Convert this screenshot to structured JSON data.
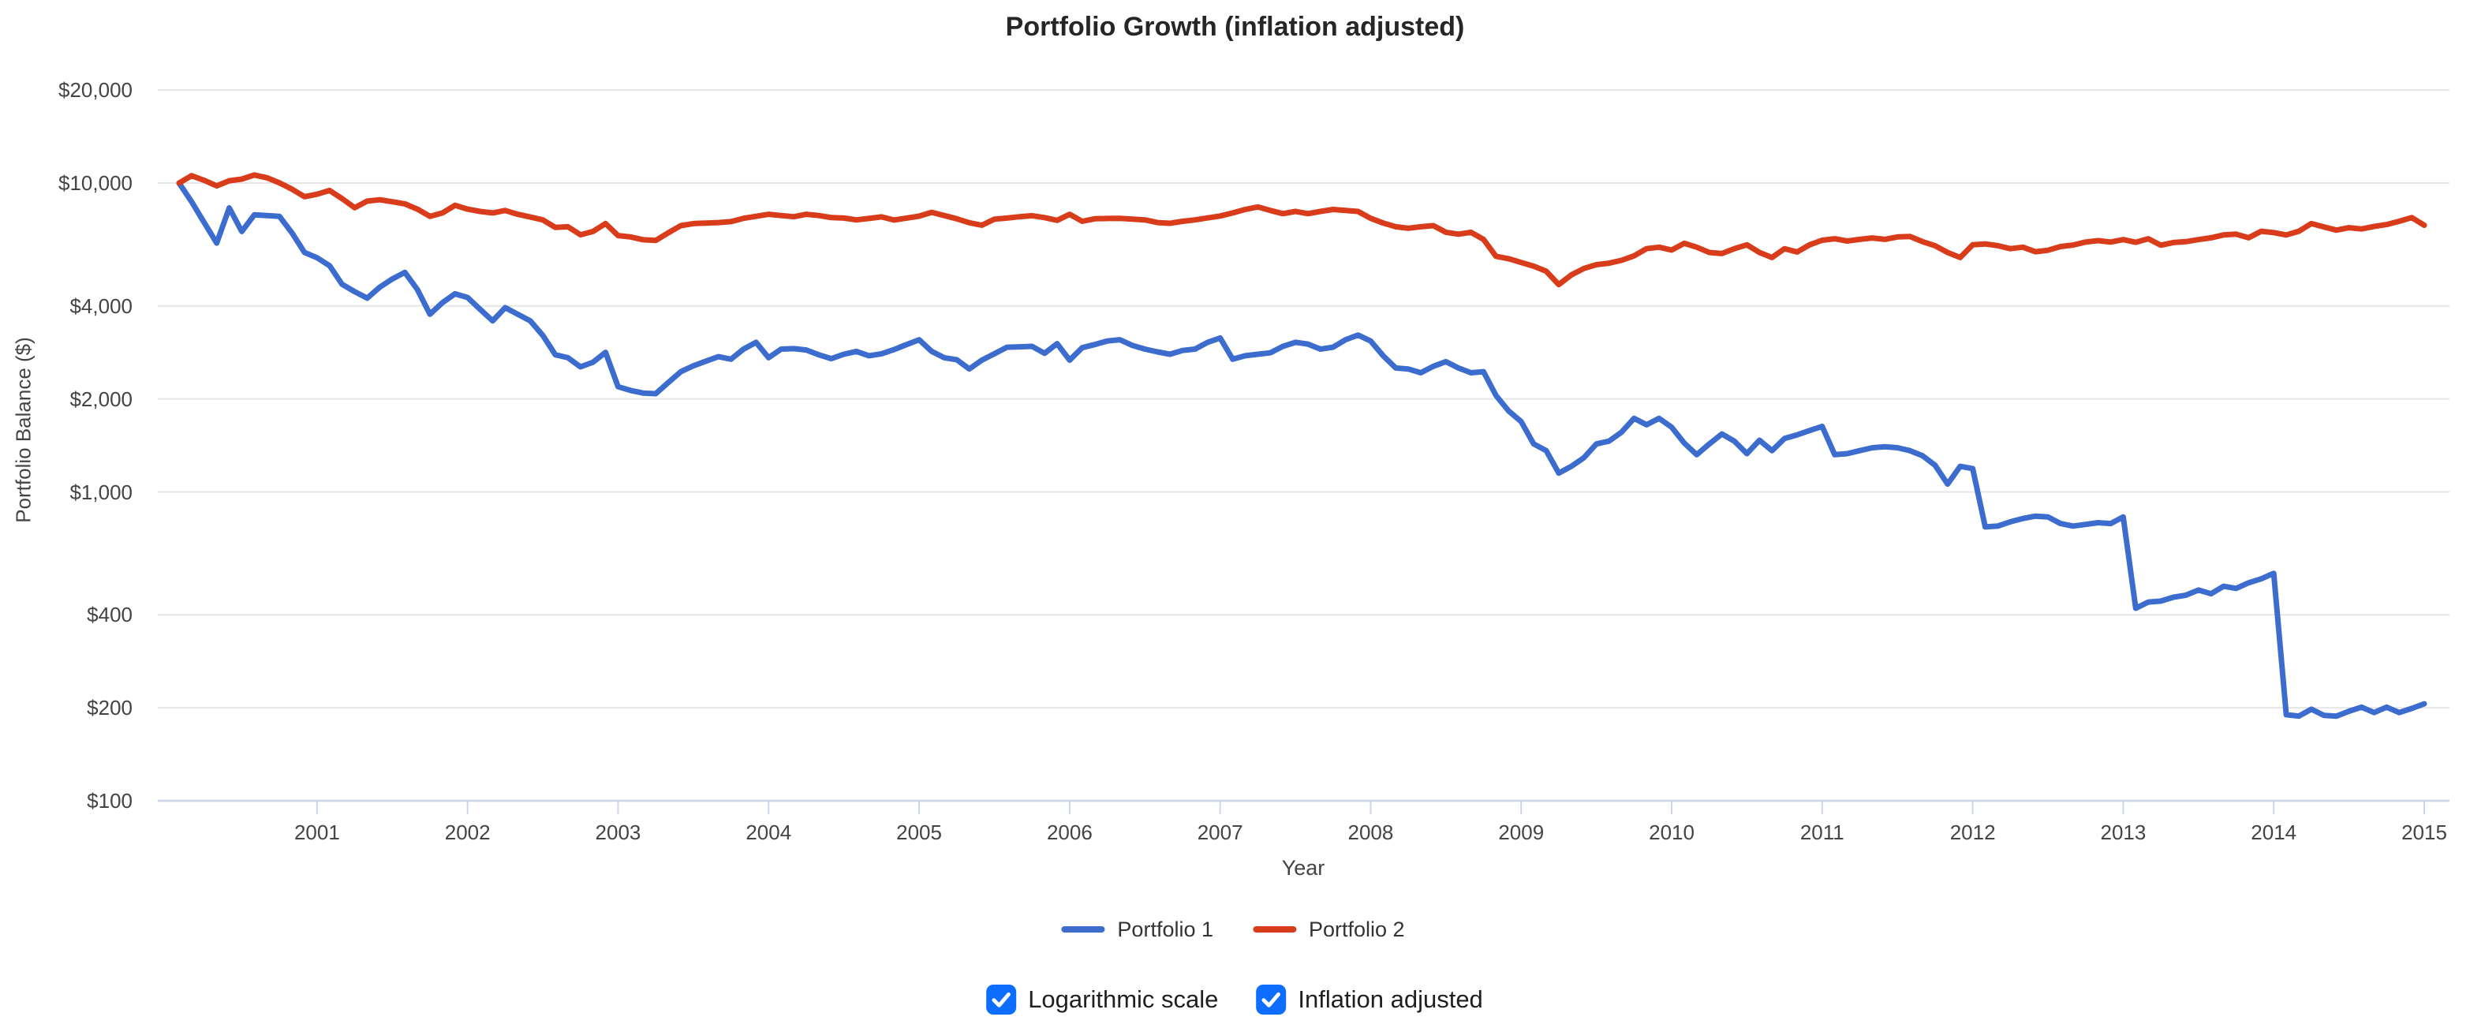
{
  "title": "Portfolio Growth (inflation adjusted)",
  "y_axis": {
    "title": "Portfolio Balance ($)"
  },
  "x_axis": {
    "title": "Year"
  },
  "legend": [
    {
      "label": "Portfolio 1",
      "color": "#3b6cce"
    },
    {
      "label": "Portfolio 2",
      "color": "#d93c1a"
    }
  ],
  "controls": [
    {
      "label": "Logarithmic scale",
      "checked": true
    },
    {
      "label": "Inflation adjusted",
      "checked": true
    }
  ],
  "colors": {
    "series_blue": "#3b6cce",
    "series_red": "#d93c1a",
    "checkbox_blue": "#0d6efd",
    "gridline": "#e6e6e6",
    "axis_line": "#ccd6eb",
    "tick_label": "#444444",
    "title_text": "#262626"
  },
  "chart_data": {
    "type": "line",
    "title": "Portfolio Growth (inflation adjusted)",
    "xlabel": "Year",
    "ylabel": "Portfolio Balance ($)",
    "x_unit": "month",
    "x_range": [
      "2000-01",
      "2014-12"
    ],
    "x_tick_years": [
      2001,
      2002,
      2003,
      2004,
      2005,
      2006,
      2007,
      2008,
      2009,
      2010,
      2011,
      2012,
      2013,
      2014,
      2015
    ],
    "y_scale": "log",
    "ylim": [
      100,
      20000
    ],
    "grid": true,
    "legend_position": "bottom",
    "y_ticks": [
      {
        "value": 20000,
        "label": "$20,000"
      },
      {
        "value": 10000,
        "label": "$10,000"
      },
      {
        "value": 4000,
        "label": "$4,000"
      },
      {
        "value": 2000,
        "label": "$2,000"
      },
      {
        "value": 1000,
        "label": "$1,000"
      },
      {
        "value": 400,
        "label": "$400"
      },
      {
        "value": 200,
        "label": "$200"
      },
      {
        "value": 100,
        "label": "$100"
      }
    ],
    "series": [
      {
        "name": "Portfolio 1",
        "color": "#3b6cce",
        "values": [
          10000,
          8700,
          7450,
          6390,
          8310,
          6970,
          7890,
          7850,
          7800,
          6900,
          5960,
          5730,
          5400,
          4700,
          4450,
          4240,
          4600,
          4890,
          5140,
          4520,
          3760,
          4100,
          4380,
          4260,
          3900,
          3580,
          3950,
          3760,
          3580,
          3210,
          2780,
          2720,
          2540,
          2630,
          2830,
          2190,
          2130,
          2090,
          2080,
          2260,
          2450,
          2560,
          2650,
          2740,
          2690,
          2900,
          3050,
          2720,
          2900,
          2910,
          2880,
          2780,
          2700,
          2790,
          2850,
          2760,
          2800,
          2890,
          3000,
          3110,
          2850,
          2720,
          2680,
          2500,
          2670,
          2800,
          2940,
          2950,
          2960,
          2810,
          3020,
          2670,
          2930,
          3000,
          3080,
          3110,
          2980,
          2900,
          2840,
          2790,
          2870,
          2900,
          3050,
          3150,
          2690,
          2760,
          2790,
          2820,
          2960,
          3050,
          3010,
          2900,
          2940,
          3110,
          3220,
          3080,
          2760,
          2520,
          2500,
          2430,
          2550,
          2640,
          2520,
          2430,
          2450,
          2050,
          1830,
          1690,
          1430,
          1360,
          1150,
          1210,
          1290,
          1430,
          1460,
          1560,
          1730,
          1650,
          1730,
          1620,
          1440,
          1320,
          1430,
          1540,
          1460,
          1330,
          1470,
          1360,
          1490,
          1530,
          1580,
          1630,
          1320,
          1330,
          1360,
          1390,
          1400,
          1390,
          1360,
          1310,
          1220,
          1060,
          1210,
          1190,
          770,
          775,
          800,
          820,
          835,
          830,
          790,
          775,
          785,
          795,
          790,
          830,
          420,
          440,
          443,
          456,
          463,
          481,
          468,
          495,
          487,
          508,
          523,
          545,
          190,
          188,
          198,
          189,
          188,
          195,
          201,
          193,
          201,
          193,
          199,
          206
        ]
      },
      {
        "name": "Portfolio 2",
        "color": "#d93c1a",
        "values": [
          10000,
          10560,
          10200,
          9790,
          10170,
          10300,
          10620,
          10400,
          10020,
          9550,
          9030,
          9200,
          9460,
          8900,
          8320,
          8740,
          8830,
          8700,
          8560,
          8230,
          7800,
          8000,
          8470,
          8230,
          8090,
          8000,
          8150,
          7920,
          7760,
          7600,
          7180,
          7220,
          6800,
          6970,
          7390,
          6760,
          6690,
          6550,
          6520,
          6900,
          7280,
          7390,
          7420,
          7450,
          7500,
          7690,
          7800,
          7920,
          7850,
          7780,
          7920,
          7850,
          7730,
          7700,
          7600,
          7680,
          7770,
          7590,
          7700,
          7810,
          8040,
          7850,
          7660,
          7440,
          7300,
          7640,
          7700,
          7780,
          7840,
          7730,
          7570,
          7920,
          7520,
          7660,
          7680,
          7690,
          7640,
          7600,
          7450,
          7410,
          7520,
          7600,
          7710,
          7820,
          8000,
          8210,
          8370,
          8150,
          7960,
          8090,
          7960,
          8090,
          8210,
          8150,
          8090,
          7690,
          7420,
          7220,
          7140,
          7220,
          7280,
          6930,
          6830,
          6930,
          6570,
          5790,
          5690,
          5530,
          5380,
          5180,
          4690,
          5040,
          5290,
          5440,
          5500,
          5620,
          5810,
          6130,
          6200,
          6070,
          6380,
          6200,
          5960,
          5910,
          6130,
          6310,
          5960,
          5740,
          6130,
          5980,
          6310,
          6530,
          6600,
          6490,
          6570,
          6640,
          6570,
          6690,
          6710,
          6460,
          6270,
          5960,
          5740,
          6310,
          6350,
          6270,
          6130,
          6200,
          5990,
          6060,
          6230,
          6300,
          6440,
          6510,
          6440,
          6560,
          6430,
          6600,
          6290,
          6420,
          6460,
          6560,
          6650,
          6790,
          6830,
          6650,
          6980,
          6910,
          6790,
          6980,
          7390,
          7210,
          7040,
          7170,
          7100,
          7230,
          7340,
          7520,
          7730,
          7300
        ]
      }
    ]
  }
}
